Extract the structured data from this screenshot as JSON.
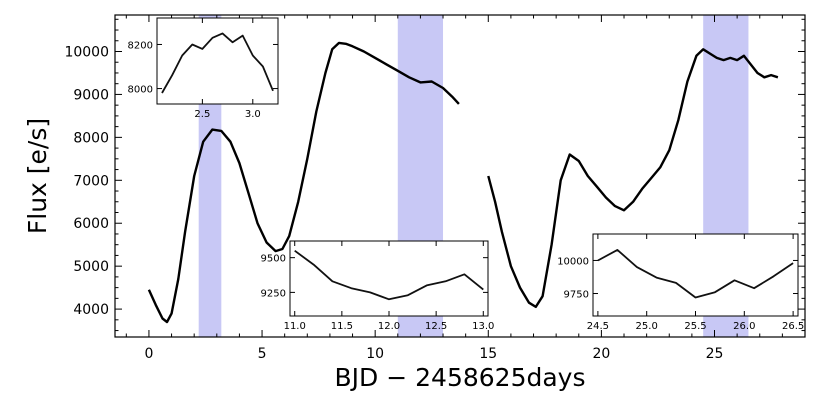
{
  "colors": {
    "band": "#c8c8f5",
    "line": "#000000",
    "background": "#ffffff"
  },
  "chart_data": {
    "type": "line",
    "title": "",
    "xlabel": "BJD − 2458625days",
    "ylabel": "Flux [e/s]",
    "xlim": [
      -1.5,
      29
    ],
    "ylim": [
      3350,
      10850
    ],
    "xticks": [
      0,
      5,
      10,
      15,
      20,
      25
    ],
    "yticks": [
      4000,
      5000,
      6000,
      7000,
      8000,
      9000,
      10000
    ],
    "grid": false,
    "highlight_bands": [
      [
        2.2,
        3.2
      ],
      [
        11.0,
        13.0
      ],
      [
        24.5,
        26.5
      ]
    ],
    "series": [
      {
        "segments": [
          {
            "x": [
              0.0,
              0.3,
              0.6,
              0.8,
              1.0,
              1.3,
              1.6,
              2.0,
              2.4,
              2.8,
              3.2,
              3.6,
              4.0,
              4.4,
              4.8,
              5.2,
              5.6,
              5.9,
              6.2,
              6.6,
              7.0,
              7.4,
              7.8,
              8.1,
              8.4,
              8.7,
              9.0,
              9.5,
              10.0,
              10.5,
              11.0,
              11.5,
              12.0,
              12.5,
              13.0,
              13.4,
              13.7
            ],
            "y": [
              4450,
              4100,
              3780,
              3700,
              3900,
              4700,
              5800,
              7100,
              7900,
              8180,
              8150,
              7900,
              7400,
              6700,
              6000,
              5550,
              5350,
              5400,
              5700,
              6500,
              7500,
              8600,
              9500,
              10050,
              10200,
              10180,
              10120,
              10000,
              9850,
              9700,
              9550,
              9400,
              9280,
              9300,
              9150,
              8950,
              8780
            ]
          },
          {
            "x": [
              15.0,
              15.3,
              15.6,
              16.0,
              16.4,
              16.8,
              17.1,
              17.4,
              17.8,
              18.2,
              18.6,
              19.0,
              19.4,
              19.8,
              20.2,
              20.6,
              21.0,
              21.4,
              21.8,
              22.2,
              22.6,
              23.0,
              23.4,
              23.8,
              24.2,
              24.5,
              24.8,
              25.1,
              25.4,
              25.7,
              26.0,
              26.3,
              26.6,
              26.9,
              27.2,
              27.5,
              27.8
            ],
            "y": [
              7100,
              6500,
              5800,
              5000,
              4500,
              4150,
              4050,
              4300,
              5500,
              7000,
              7600,
              7450,
              7100,
              6850,
              6600,
              6400,
              6300,
              6500,
              6800,
              7050,
              7300,
              7700,
              8400,
              9300,
              9900,
              10050,
              9950,
              9850,
              9800,
              9850,
              9800,
              9900,
              9700,
              9500,
              9400,
              9450,
              9400
            ]
          }
        ]
      }
    ],
    "insets": [
      {
        "xlim": [
          2.05,
          3.25
        ],
        "ylim": [
          7930,
          8320
        ],
        "xticks": [
          2.5,
          3.0
        ],
        "yticks": [
          8000,
          8200
        ],
        "x": [
          2.1,
          2.2,
          2.3,
          2.4,
          2.5,
          2.6,
          2.7,
          2.8,
          2.9,
          3.0,
          3.1,
          3.2
        ],
        "y": [
          7980,
          8060,
          8150,
          8200,
          8180,
          8230,
          8250,
          8210,
          8240,
          8150,
          8100,
          7990
        ]
      },
      {
        "xlim": [
          10.95,
          13.05
        ],
        "ylim": [
          9080,
          9620
        ],
        "xticks": [
          11.0,
          11.5,
          12.0,
          12.5,
          13.0
        ],
        "yticks": [
          9250,
          9500
        ],
        "x": [
          11.0,
          11.2,
          11.4,
          11.6,
          11.8,
          12.0,
          12.2,
          12.4,
          12.6,
          12.8,
          13.0
        ],
        "y": [
          9550,
          9450,
          9330,
          9280,
          9250,
          9200,
          9230,
          9300,
          9330,
          9380,
          9270
        ]
      },
      {
        "xlim": [
          24.45,
          26.55
        ],
        "ylim": [
          9580,
          10200
        ],
        "xticks": [
          24.5,
          25.0,
          25.5,
          26.0,
          26.5
        ],
        "yticks": [
          9750,
          10000
        ],
        "x": [
          24.5,
          24.7,
          24.9,
          25.1,
          25.3,
          25.5,
          25.7,
          25.9,
          26.1,
          26.3,
          26.5
        ],
        "y": [
          10000,
          10080,
          9950,
          9870,
          9830,
          9720,
          9760,
          9850,
          9790,
          9880,
          9980
        ]
      }
    ]
  }
}
